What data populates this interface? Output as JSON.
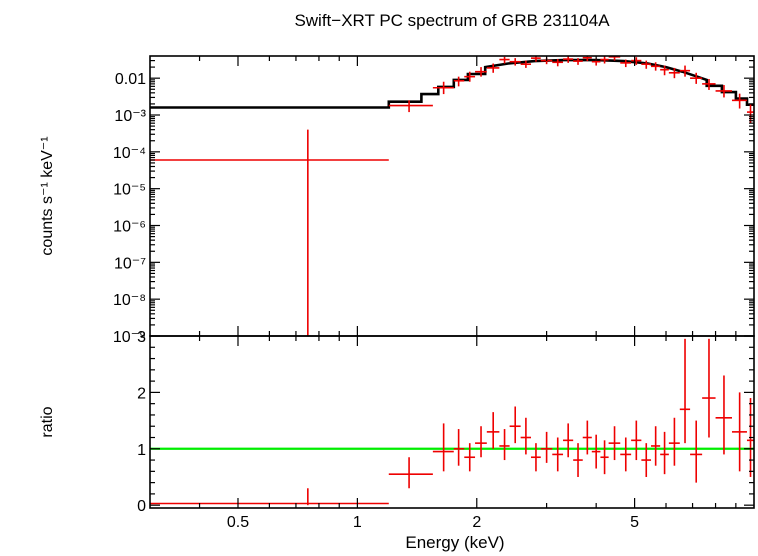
{
  "chart_data": {
    "type": "scatter",
    "title": "Swift−XRT PC spectrum of GRB 231104A",
    "xlabel": "Energy (keV)",
    "xscale": "log",
    "xlim": [
      0.3,
      10.0
    ],
    "xticks": [
      {
        "value": 0.5,
        "label": "0.5"
      },
      {
        "value": 1,
        "label": "1"
      },
      {
        "value": 2,
        "label": "2"
      },
      {
        "value": 5,
        "label": "5"
      }
    ],
    "colors": {
      "data": "#ee0000",
      "model": "#000000",
      "unity": "#00ee00",
      "axes": "#000000"
    },
    "panels": [
      {
        "id": "spectrum",
        "ylabel": "counts s⁻¹ keV⁻¹",
        "yscale": "log",
        "ylim": [
          1e-09,
          0.04
        ],
        "yticks": [
          {
            "value": 0.01,
            "label": "0.01"
          },
          {
            "value": 0.001,
            "label": "10⁻³"
          },
          {
            "value": 0.0001,
            "label": "10⁻⁴"
          },
          {
            "value": 1e-05,
            "label": "10⁻⁵"
          },
          {
            "value": 1e-06,
            "label": "10⁻⁶"
          },
          {
            "value": 1e-07,
            "label": "10⁻⁷"
          },
          {
            "value": 1e-08,
            "label": "10⁻⁸"
          },
          {
            "value": 1e-09,
            "label": "10⁻⁹"
          }
        ],
        "model": [
          [
            0.3,
            0.0016
          ],
          [
            1.2,
            0.0016
          ],
          [
            1.2,
            0.0023
          ],
          [
            1.45,
            0.0023
          ],
          [
            1.45,
            0.0037
          ],
          [
            1.6,
            0.0037
          ],
          [
            1.6,
            0.0058
          ],
          [
            1.75,
            0.0058
          ],
          [
            1.75,
            0.009
          ],
          [
            1.9,
            0.009
          ],
          [
            1.9,
            0.013
          ],
          [
            2.1,
            0.013
          ],
          [
            2.1,
            0.02
          ],
          [
            2.4,
            0.025
          ],
          [
            2.8,
            0.029
          ],
          [
            3.3,
            0.031
          ],
          [
            4.0,
            0.031
          ],
          [
            4.7,
            0.029
          ],
          [
            5.4,
            0.025
          ],
          [
            6.0,
            0.02
          ],
          [
            6.6,
            0.015
          ],
          [
            7.2,
            0.011
          ],
          [
            7.6,
            0.009
          ],
          [
            7.6,
            0.0062
          ],
          [
            8.3,
            0.0062
          ],
          [
            8.3,
            0.0042
          ],
          [
            9.0,
            0.0042
          ],
          [
            9.0,
            0.0028
          ],
          [
            9.6,
            0.0028
          ],
          [
            9.6,
            0.0019
          ],
          [
            10.0,
            0.0019
          ]
        ],
        "points": [
          {
            "x": 0.75,
            "xlo": 0.3,
            "xhi": 1.2,
            "y": 6e-05,
            "ylo": 1e-09,
            "yhi": 0.0004
          },
          {
            "x": 1.35,
            "xlo": 1.2,
            "xhi": 1.55,
            "y": 0.0018,
            "ylo": 0.0012,
            "yhi": 0.0025
          },
          {
            "x": 1.65,
            "xlo": 1.55,
            "xhi": 1.75,
            "y": 0.0055,
            "ylo": 0.0037,
            "yhi": 0.008
          },
          {
            "x": 1.8,
            "xlo": 1.75,
            "xhi": 1.86,
            "y": 0.0085,
            "ylo": 0.006,
            "yhi": 0.011
          },
          {
            "x": 1.92,
            "xlo": 1.86,
            "xhi": 1.98,
            "y": 0.011,
            "ylo": 0.008,
            "yhi": 0.015
          },
          {
            "x": 2.05,
            "xlo": 1.98,
            "xhi": 2.12,
            "y": 0.015,
            "ylo": 0.011,
            "yhi": 0.02
          },
          {
            "x": 2.2,
            "xlo": 2.12,
            "xhi": 2.28,
            "y": 0.019,
            "ylo": 0.014,
            "yhi": 0.025
          },
          {
            "x": 2.35,
            "xlo": 2.28,
            "xhi": 2.42,
            "y": 0.032,
            "ylo": 0.025,
            "yhi": 0.038
          },
          {
            "x": 2.5,
            "xlo": 2.42,
            "xhi": 2.58,
            "y": 0.028,
            "ylo": 0.022,
            "yhi": 0.035
          },
          {
            "x": 2.66,
            "xlo": 2.58,
            "xhi": 2.74,
            "y": 0.024,
            "ylo": 0.019,
            "yhi": 0.03
          },
          {
            "x": 2.82,
            "xlo": 2.74,
            "xhi": 2.9,
            "y": 0.035,
            "ylo": 0.028,
            "yhi": 0.04
          },
          {
            "x": 3.0,
            "xlo": 2.9,
            "xhi": 3.1,
            "y": 0.03,
            "ylo": 0.024,
            "yhi": 0.036
          },
          {
            "x": 3.2,
            "xlo": 3.1,
            "xhi": 3.3,
            "y": 0.027,
            "ylo": 0.021,
            "yhi": 0.033
          },
          {
            "x": 3.4,
            "xlo": 3.3,
            "xhi": 3.5,
            "y": 0.033,
            "ylo": 0.026,
            "yhi": 0.04
          },
          {
            "x": 3.6,
            "xlo": 3.5,
            "xhi": 3.7,
            "y": 0.029,
            "ylo": 0.023,
            "yhi": 0.035
          },
          {
            "x": 3.8,
            "xlo": 3.7,
            "xhi": 3.9,
            "y": 0.036,
            "ylo": 0.029,
            "yhi": 0.04
          },
          {
            "x": 4.0,
            "xlo": 3.9,
            "xhi": 4.1,
            "y": 0.028,
            "ylo": 0.022,
            "yhi": 0.034
          },
          {
            "x": 4.2,
            "xlo": 4.1,
            "xhi": 4.3,
            "y": 0.032,
            "ylo": 0.025,
            "yhi": 0.039
          },
          {
            "x": 4.45,
            "xlo": 4.3,
            "xhi": 4.6,
            "y": 0.038,
            "ylo": 0.03,
            "yhi": 0.04
          },
          {
            "x": 4.75,
            "xlo": 4.6,
            "xhi": 4.9,
            "y": 0.026,
            "ylo": 0.02,
            "yhi": 0.032
          },
          {
            "x": 5.05,
            "xlo": 4.9,
            "xhi": 5.2,
            "y": 0.03,
            "ylo": 0.023,
            "yhi": 0.037
          },
          {
            "x": 5.35,
            "xlo": 5.2,
            "xhi": 5.5,
            "y": 0.024,
            "ylo": 0.018,
            "yhi": 0.03
          },
          {
            "x": 5.65,
            "xlo": 5.5,
            "xhi": 5.8,
            "y": 0.021,
            "ylo": 0.016,
            "yhi": 0.027
          },
          {
            "x": 5.95,
            "xlo": 5.8,
            "xhi": 6.1,
            "y": 0.017,
            "ylo": 0.012,
            "yhi": 0.022
          },
          {
            "x": 6.3,
            "xlo": 6.1,
            "xhi": 6.5,
            "y": 0.014,
            "ylo": 0.01,
            "yhi": 0.019
          },
          {
            "x": 6.7,
            "xlo": 6.5,
            "xhi": 6.9,
            "y": 0.016,
            "ylo": 0.011,
            "yhi": 0.022
          },
          {
            "x": 7.15,
            "xlo": 6.9,
            "xhi": 7.4,
            "y": 0.01,
            "ylo": 0.007,
            "yhi": 0.014
          },
          {
            "x": 7.7,
            "xlo": 7.4,
            "xhi": 8.0,
            "y": 0.007,
            "ylo": 0.0048,
            "yhi": 0.0095
          },
          {
            "x": 8.4,
            "xlo": 8.0,
            "xhi": 8.8,
            "y": 0.0045,
            "ylo": 0.003,
            "yhi": 0.0065
          },
          {
            "x": 9.2,
            "xlo": 8.8,
            "xhi": 9.6,
            "y": 0.0025,
            "ylo": 0.0015,
            "yhi": 0.0038
          },
          {
            "x": 9.8,
            "xlo": 9.6,
            "xhi": 10.0,
            "y": 0.0012,
            "ylo": 0.0006,
            "yhi": 0.002
          }
        ]
      },
      {
        "id": "ratio",
        "ylabel": "ratio",
        "yscale": "linear",
        "ylim": [
          -0.05,
          3.0
        ],
        "yticks": [
          {
            "value": 0,
            "label": "0"
          },
          {
            "value": 1,
            "label": "1"
          },
          {
            "value": 2,
            "label": "2"
          },
          {
            "value": 3,
            "label": "3"
          }
        ],
        "reference_line": 1.0,
        "points": [
          {
            "x": 0.75,
            "xlo": 0.3,
            "xhi": 1.2,
            "y": 0.03,
            "ylo": 0.0,
            "yhi": 0.3
          },
          {
            "x": 1.35,
            "xlo": 1.2,
            "xhi": 1.55,
            "y": 0.55,
            "ylo": 0.3,
            "yhi": 0.85
          },
          {
            "x": 1.65,
            "xlo": 1.55,
            "xhi": 1.75,
            "y": 0.95,
            "ylo": 0.6,
            "yhi": 1.45
          },
          {
            "x": 1.8,
            "xlo": 1.75,
            "xhi": 1.86,
            "y": 1.0,
            "ylo": 0.7,
            "yhi": 1.35
          },
          {
            "x": 1.92,
            "xlo": 1.86,
            "xhi": 1.98,
            "y": 0.85,
            "ylo": 0.6,
            "yhi": 1.1
          },
          {
            "x": 2.05,
            "xlo": 1.98,
            "xhi": 2.12,
            "y": 1.1,
            "ylo": 0.85,
            "yhi": 1.4
          },
          {
            "x": 2.2,
            "xlo": 2.12,
            "xhi": 2.28,
            "y": 1.3,
            "ylo": 1.0,
            "yhi": 1.65
          },
          {
            "x": 2.35,
            "xlo": 2.28,
            "xhi": 2.42,
            "y": 1.05,
            "ylo": 0.8,
            "yhi": 1.35
          },
          {
            "x": 2.5,
            "xlo": 2.42,
            "xhi": 2.58,
            "y": 1.4,
            "ylo": 1.1,
            "yhi": 1.75
          },
          {
            "x": 2.66,
            "xlo": 2.58,
            "xhi": 2.74,
            "y": 1.2,
            "ylo": 0.9,
            "yhi": 1.55
          },
          {
            "x": 2.82,
            "xlo": 2.74,
            "xhi": 2.9,
            "y": 0.85,
            "ylo": 0.6,
            "yhi": 1.1
          },
          {
            "x": 3.0,
            "xlo": 2.9,
            "xhi": 3.1,
            "y": 1.0,
            "ylo": 0.75,
            "yhi": 1.3
          },
          {
            "x": 3.2,
            "xlo": 3.1,
            "xhi": 3.3,
            "y": 0.9,
            "ylo": 0.6,
            "yhi": 1.2
          },
          {
            "x": 3.4,
            "xlo": 3.3,
            "xhi": 3.5,
            "y": 1.15,
            "ylo": 0.85,
            "yhi": 1.45
          },
          {
            "x": 3.6,
            "xlo": 3.5,
            "xhi": 3.7,
            "y": 0.8,
            "ylo": 0.5,
            "yhi": 1.1
          },
          {
            "x": 3.8,
            "xlo": 3.7,
            "xhi": 3.9,
            "y": 1.2,
            "ylo": 0.9,
            "yhi": 1.5
          },
          {
            "x": 4.0,
            "xlo": 3.9,
            "xhi": 4.1,
            "y": 0.95,
            "ylo": 0.65,
            "yhi": 1.25
          },
          {
            "x": 4.2,
            "xlo": 4.1,
            "xhi": 4.3,
            "y": 0.85,
            "ylo": 0.55,
            "yhi": 1.15
          },
          {
            "x": 4.45,
            "xlo": 4.3,
            "xhi": 4.6,
            "y": 1.1,
            "ylo": 0.8,
            "yhi": 1.4
          },
          {
            "x": 4.75,
            "xlo": 4.6,
            "xhi": 4.9,
            "y": 0.9,
            "ylo": 0.6,
            "yhi": 1.2
          },
          {
            "x": 5.05,
            "xlo": 4.9,
            "xhi": 5.2,
            "y": 1.15,
            "ylo": 0.8,
            "yhi": 1.5
          },
          {
            "x": 5.35,
            "xlo": 5.2,
            "xhi": 5.5,
            "y": 0.8,
            "ylo": 0.5,
            "yhi": 1.1
          },
          {
            "x": 5.65,
            "xlo": 5.5,
            "xhi": 5.8,
            "y": 1.05,
            "ylo": 0.7,
            "yhi": 1.4
          },
          {
            "x": 5.95,
            "xlo": 5.8,
            "xhi": 6.1,
            "y": 0.9,
            "ylo": 0.55,
            "yhi": 1.3
          },
          {
            "x": 6.3,
            "xlo": 6.1,
            "xhi": 6.5,
            "y": 1.1,
            "ylo": 0.7,
            "yhi": 1.55
          },
          {
            "x": 6.7,
            "xlo": 6.5,
            "xhi": 6.9,
            "y": 1.7,
            "ylo": 1.1,
            "yhi": 2.95
          },
          {
            "x": 7.15,
            "xlo": 6.9,
            "xhi": 7.4,
            "y": 0.9,
            "ylo": 0.4,
            "yhi": 1.5
          },
          {
            "x": 7.7,
            "xlo": 7.4,
            "xhi": 8.0,
            "y": 1.9,
            "ylo": 1.2,
            "yhi": 2.95
          },
          {
            "x": 8.4,
            "xlo": 8.0,
            "xhi": 8.8,
            "y": 1.55,
            "ylo": 0.9,
            "yhi": 2.3
          },
          {
            "x": 9.2,
            "xlo": 8.8,
            "xhi": 9.6,
            "y": 1.3,
            "ylo": 0.6,
            "yhi": 2.0
          },
          {
            "x": 9.8,
            "xlo": 9.6,
            "xhi": 10.0,
            "y": 1.15,
            "ylo": 0.5,
            "yhi": 1.9
          }
        ]
      }
    ]
  }
}
